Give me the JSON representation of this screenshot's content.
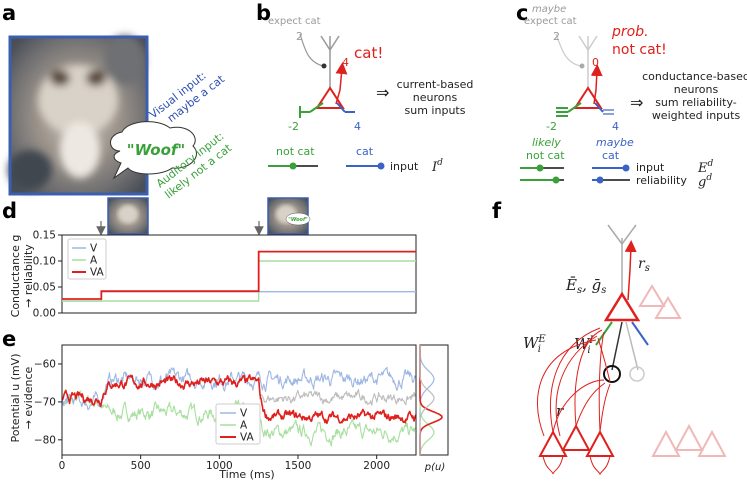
{
  "panel_labels": {
    "a": "a",
    "b": "b",
    "c": "c",
    "d": "d",
    "e": "e",
    "f": "f"
  },
  "panel_a": {
    "visual_text": [
      "Visual input:",
      "maybe a cat"
    ],
    "auditory_text": [
      "Auditory input:",
      "likely not a cat"
    ],
    "bubble_text": "\"Woof\"",
    "colors": {
      "visual": "#2a4db0",
      "auditory": "#3aa13a",
      "frame": "#3a5fb0"
    }
  },
  "panel_b": {
    "expect": "expect cat",
    "top_weight": "2",
    "out_weight": "4",
    "exclaim": "cat!",
    "left_weight": "-2",
    "right_weight": "4",
    "desc": [
      "current-based",
      "neurons",
      "sum inputs"
    ],
    "not_cat": "not cat",
    "cat": "cat",
    "input_label": "input",
    "symbol": "I",
    "symbol_sup": "d"
  },
  "panel_c": {
    "maybe": "maybe",
    "expect": "expect cat",
    "top_weight": "2",
    "out_weight": "0",
    "prob": "prob.",
    "not_cat": "not cat!",
    "left_weight": "-2",
    "right_weight": "4",
    "desc": [
      "conductance-based",
      "neurons",
      "sum reliability-",
      "weighted inputs"
    ],
    "likely": "likely",
    "likely_not_cat": "not cat",
    "maybe_cat1": "maybe",
    "maybe_cat2": "cat",
    "input_label": "input",
    "reliability_label": "reliability",
    "sym1": "E",
    "sym1_sup": "d",
    "sym2": "g",
    "sym2_sup": "d"
  },
  "panel_d": {
    "ylabel1": "Conductance g",
    "ylabel2": "→ reliability",
    "bubble": "\"Woof\"",
    "legend": [
      "V",
      "A",
      "VA"
    ]
  },
  "panel_e": {
    "ylabel1": "Potential u (mV)",
    "ylabel2": "→ evidence",
    "xlabel": "Time (ms)",
    "pu_label": "p(u)",
    "legend": [
      "V",
      "A",
      "VA"
    ]
  },
  "panel_f": {
    "rs": "r",
    "rs_sub": "s",
    "Es": "Ē",
    "Es_sub": "s",
    "gs": "ḡ",
    "gs_sub": "s",
    "WE": "W",
    "WE_sub": "i",
    "WE_sup": "E",
    "WI": "W",
    "WI_sub": "i",
    "WI_sup": "I",
    "r": "r"
  },
  "colors": {
    "V": "#9fb7e3",
    "A": "#a9dfa0",
    "VA": "#e0201c",
    "red": "#e0201c",
    "blue": "#3a63c4",
    "green": "#3aa13a",
    "gray": "#9a9a9a"
  },
  "chart_data": [
    {
      "type": "line",
      "title": "",
      "xlabel": "",
      "ylabel": "Conductance g → reliability",
      "xlim": [
        0,
        2250
      ],
      "ylim": [
        0,
        0.15
      ],
      "yticks": [
        0.0,
        0.05,
        0.1,
        0.15
      ],
      "ytick_labels": [
        "0.00",
        "0.05",
        "0.10",
        "0.15"
      ],
      "legend_position": "upper-left",
      "grid": false,
      "series": [
        {
          "name": "V",
          "x": [
            0,
            250,
            250,
            1250,
            1250,
            2250
          ],
          "y": [
            0.023,
            0.023,
            0.041,
            0.041,
            0.041,
            0.041
          ]
        },
        {
          "name": "A",
          "x": [
            0,
            250,
            250,
            1250,
            1250,
            2250
          ],
          "y": [
            0.023,
            0.023,
            0.023,
            0.023,
            0.1,
            0.1
          ]
        },
        {
          "name": "VA",
          "x": [
            0,
            250,
            250,
            1250,
            1250,
            2250
          ],
          "y": [
            0.027,
            0.027,
            0.042,
            0.042,
            0.118,
            0.118
          ]
        }
      ]
    },
    {
      "type": "line",
      "title": "",
      "xlabel": "Time (ms)",
      "ylabel": "Potential u (mV) → evidence",
      "xlim": [
        0,
        2250
      ],
      "ylim": [
        -84,
        -55
      ],
      "xticks": [
        0,
        500,
        1000,
        1500,
        2000
      ],
      "xtick_labels": [
        "0",
        "500",
        "1000",
        "1500",
        "2000"
      ],
      "yticks": [
        -60,
        -70,
        -80
      ],
      "ytick_labels": [
        "−60",
        "−70",
        "−80"
      ],
      "legend_position": "lower-center",
      "grid": false,
      "series": [
        {
          "name": "V",
          "x": [
            0,
            250,
            250,
            1250,
            1250,
            2250
          ],
          "y": [
            -70,
            -70,
            -64,
            -64,
            -64,
            -64
          ]
        },
        {
          "name": "A",
          "x": [
            0,
            250,
            250,
            1250,
            1250,
            2250
          ],
          "y": [
            -70,
            -70,
            -73,
            -73,
            -78,
            -78
          ]
        },
        {
          "name": "VA",
          "x": [
            0,
            250,
            250,
            1250,
            1250,
            2250
          ],
          "y": [
            -69,
            -69,
            -65,
            -65,
            -74,
            -74
          ]
        }
      ]
    }
  ]
}
